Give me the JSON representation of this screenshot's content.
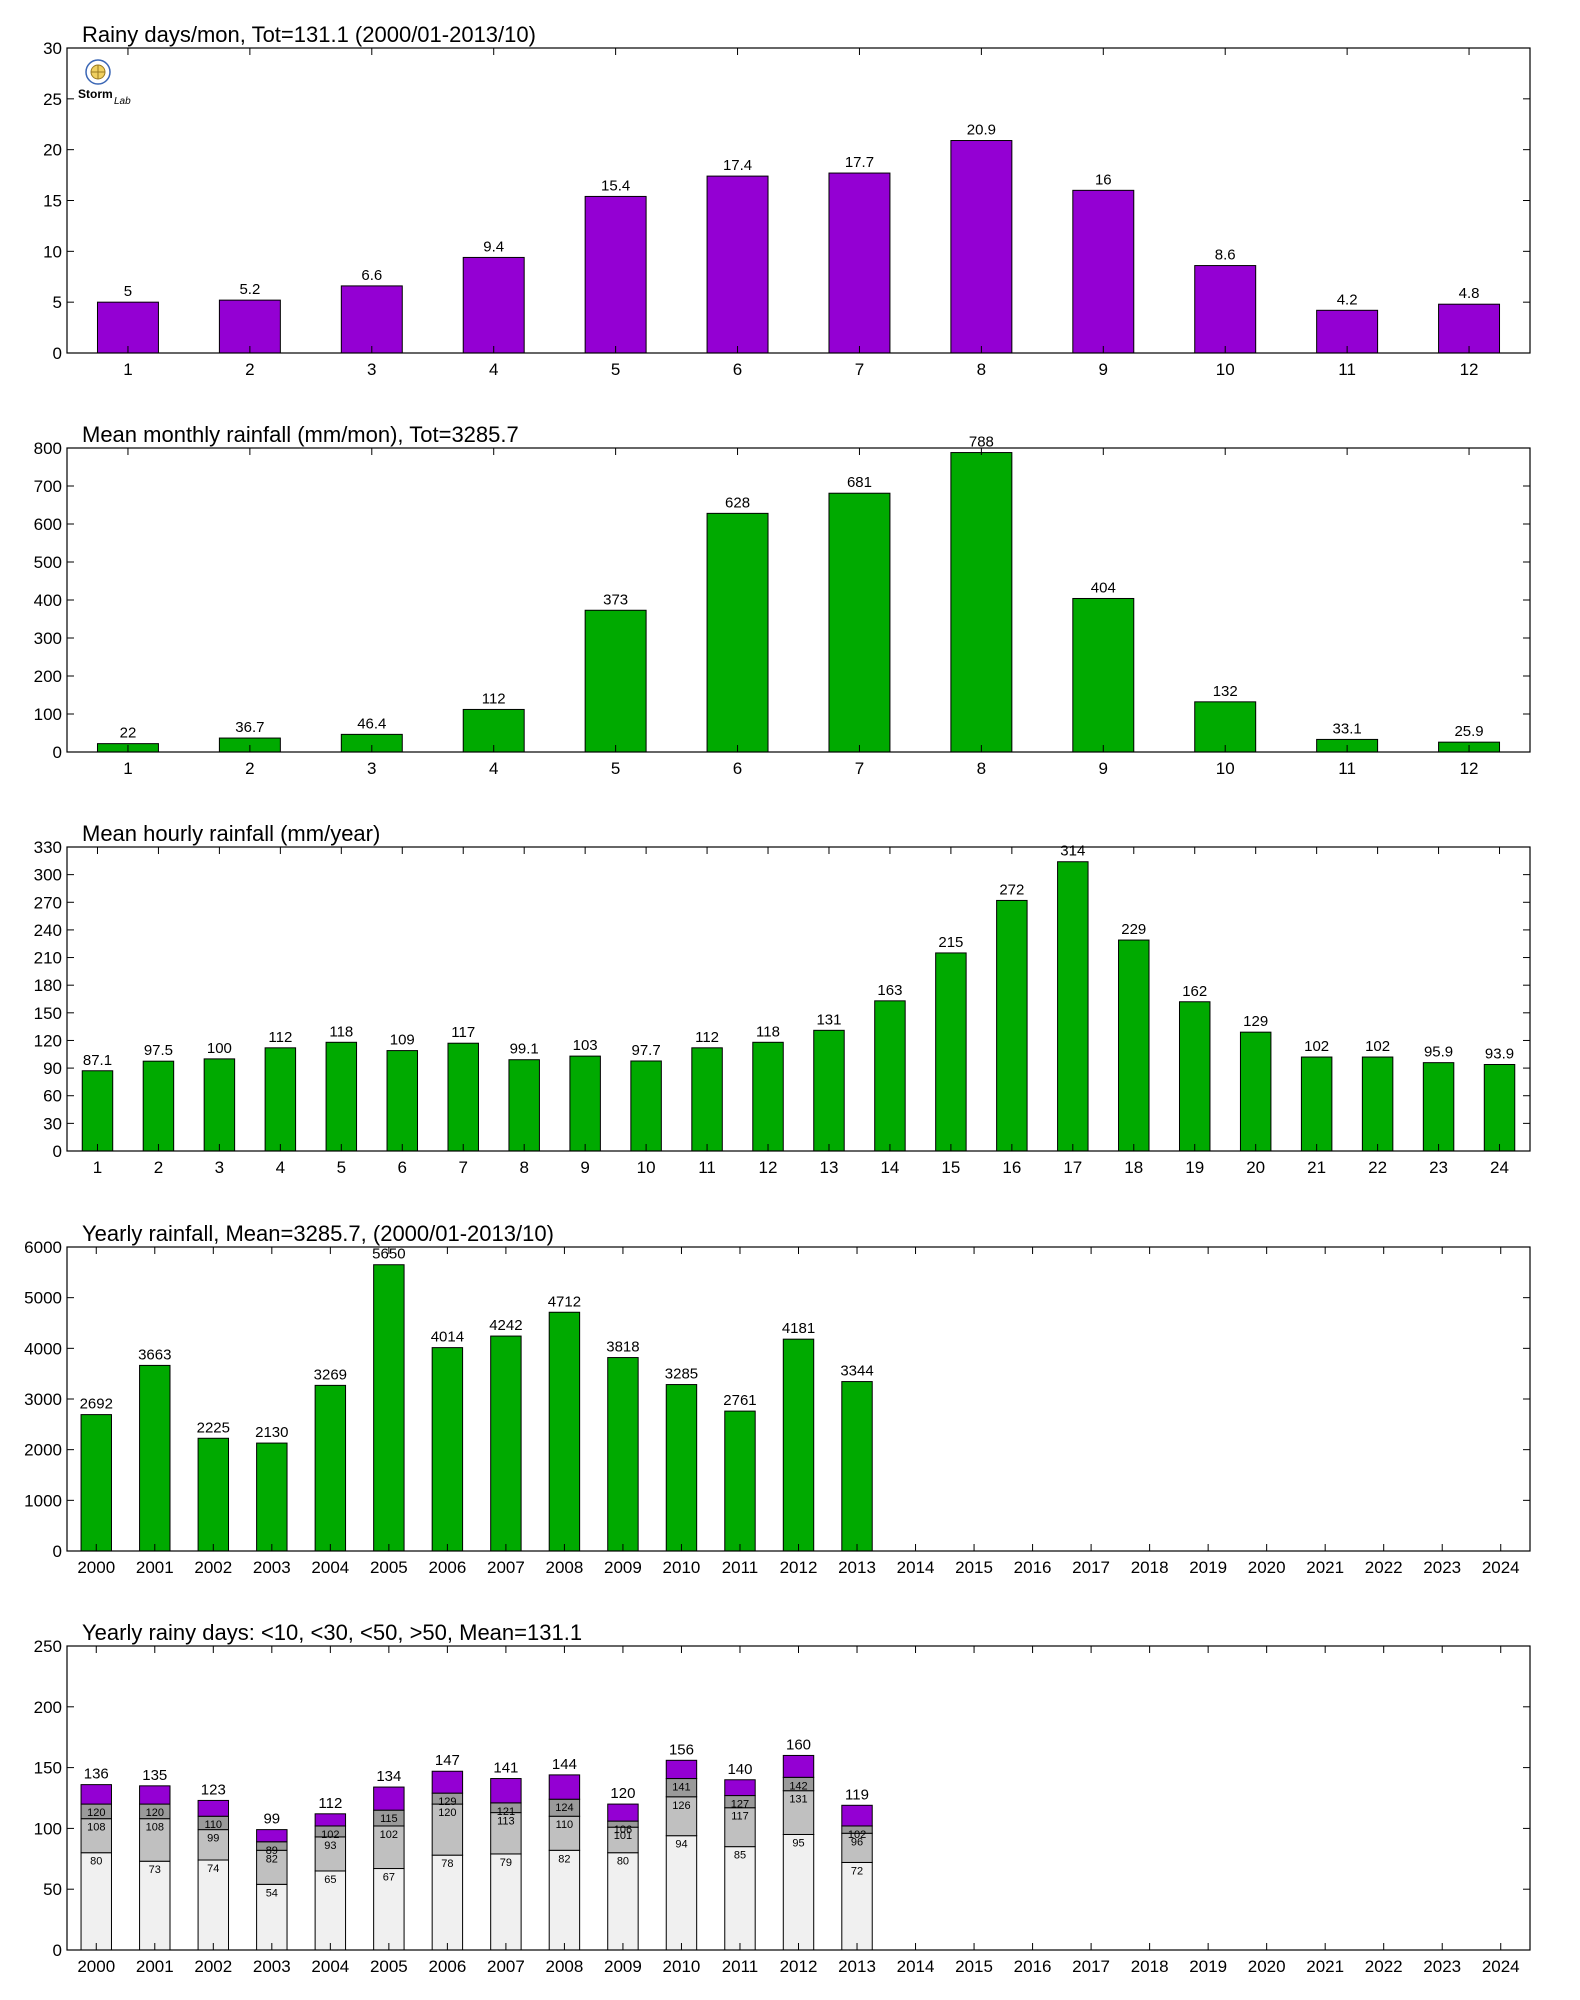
{
  "colors": {
    "purple": "#9400D3",
    "green": "#00AA00",
    "stack_light": "#F0F0F0",
    "stack_mid": "#C0C0C0",
    "stack_dark": "#9A9A9A",
    "frame": "#000000"
  },
  "logo": {
    "text_left": "Storm",
    "text_right": "Lab",
    "icon": "storm-lab-logo-icon"
  },
  "chart_data": [
    {
      "type": "bar",
      "title": "Rainy days/mon, Tot=131.1 (2000/01-2013/10)",
      "categories": [
        "1",
        "2",
        "3",
        "4",
        "5",
        "6",
        "7",
        "8",
        "9",
        "10",
        "11",
        "12"
      ],
      "values": [
        5,
        5.2,
        6.6,
        9.4,
        15.4,
        17.4,
        17.7,
        20.9,
        16,
        8.6,
        4.2,
        4.8
      ],
      "labels": [
        "5",
        "5.2",
        "6.6",
        "9.4",
        "15.4",
        "17.4",
        "17.7",
        "20.9",
        "16",
        "8.6",
        "4.2",
        "4.8"
      ],
      "ylim": [
        0,
        30
      ],
      "yticks": [
        0,
        5,
        10,
        15,
        20,
        25,
        30
      ],
      "color": "#9400D3",
      "grid": false
    },
    {
      "type": "bar",
      "title": "Mean monthly rainfall (mm/mon), Tot=3285.7",
      "categories": [
        "1",
        "2",
        "3",
        "4",
        "5",
        "6",
        "7",
        "8",
        "9",
        "10",
        "11",
        "12"
      ],
      "values": [
        22,
        36.7,
        46.4,
        112,
        373,
        628,
        681,
        788,
        404,
        132,
        33.1,
        25.9
      ],
      "labels": [
        "22",
        "36.7",
        "46.4",
        "112",
        "373",
        "628",
        "681",
        "788",
        "404",
        "132",
        "33.1",
        "25.9"
      ],
      "ylim": [
        0,
        800
      ],
      "yticks": [
        0,
        100,
        200,
        300,
        400,
        500,
        600,
        700,
        800
      ],
      "color": "#00AA00",
      "grid": false
    },
    {
      "type": "bar",
      "title": "Mean hourly rainfall (mm/year)",
      "categories": [
        "1",
        "2",
        "3",
        "4",
        "5",
        "6",
        "7",
        "8",
        "9",
        "10",
        "11",
        "12",
        "13",
        "14",
        "15",
        "16",
        "17",
        "18",
        "19",
        "20",
        "21",
        "22",
        "23",
        "24"
      ],
      "values": [
        87.1,
        97.5,
        100,
        112,
        118,
        109,
        117,
        99.1,
        103,
        97.7,
        112,
        118,
        131,
        163,
        215,
        272,
        314,
        229,
        162,
        129,
        102,
        102,
        95.9,
        93.9
      ],
      "labels": [
        "87.1",
        "97.5",
        "100",
        "112",
        "118",
        "109",
        "117",
        "99.1",
        "103",
        "97.7",
        "112",
        "118",
        "131",
        "163",
        "215",
        "272",
        "314",
        "229",
        "162",
        "129",
        "102",
        "102",
        "95.9",
        "93.9"
      ],
      "ylim": [
        0,
        330
      ],
      "yticks": [
        0,
        30,
        60,
        90,
        120,
        150,
        180,
        210,
        240,
        270,
        300,
        330
      ],
      "color": "#00AA00",
      "grid": false
    },
    {
      "type": "bar",
      "title": "Yearly rainfall, Mean=3285.7, (2000/01-2013/10)",
      "categories": [
        "2000",
        "2001",
        "2002",
        "2003",
        "2004",
        "2005",
        "2006",
        "2007",
        "2008",
        "2009",
        "2010",
        "2011",
        "2012",
        "2013",
        "2014",
        "2015",
        "2016",
        "2017",
        "2018",
        "2019",
        "2020",
        "2021",
        "2022",
        "2023",
        "2024"
      ],
      "values": [
        2692,
        3663,
        2225,
        2130,
        3269,
        5650,
        4014,
        4242,
        4712,
        3818,
        3285,
        2761,
        4181,
        3344,
        null,
        null,
        null,
        null,
        null,
        null,
        null,
        null,
        null,
        null,
        null
      ],
      "labels": [
        "2692",
        "3663",
        "2225",
        "2130",
        "3269",
        "5650",
        "4014",
        "4242",
        "4712",
        "3818",
        "3285",
        "2761",
        "4181",
        "3344",
        "",
        "",
        "",
        "",
        "",
        "",
        "",
        "",
        "",
        "",
        ""
      ],
      "ylim": [
        0,
        6000
      ],
      "yticks": [
        0,
        1000,
        2000,
        3000,
        4000,
        5000,
        6000
      ],
      "color": "#00AA00",
      "grid": false
    },
    {
      "type": "bar",
      "stacked": true,
      "title": "Yearly rainy days: <10, <30, <50, >50, Mean=131.1",
      "categories": [
        "2000",
        "2001",
        "2002",
        "2003",
        "2004",
        "2005",
        "2006",
        "2007",
        "2008",
        "2009",
        "2010",
        "2011",
        "2012",
        "2013",
        "2014",
        "2015",
        "2016",
        "2017",
        "2018",
        "2019",
        "2020",
        "2021",
        "2022",
        "2023",
        "2024"
      ],
      "cumulative": {
        "lt10": [
          80,
          73,
          74,
          54,
          65,
          67,
          78,
          79,
          82,
          80,
          94,
          85,
          95,
          72
        ],
        "lt30": [
          108,
          108,
          99,
          82,
          93,
          102,
          120,
          113,
          110,
          101,
          126,
          117,
          131,
          96
        ],
        "lt50": [
          120,
          120,
          110,
          89,
          102,
          115,
          129,
          121,
          124,
          106,
          141,
          127,
          142,
          102
        ],
        "total": [
          136,
          135,
          123,
          99,
          112,
          134,
          147,
          141,
          144,
          120,
          156,
          140,
          160,
          119
        ]
      },
      "labels": {
        "lt10": [
          "80",
          "73",
          "74",
          "54",
          "65",
          "67",
          "78",
          "79",
          "82",
          "80",
          "94",
          "85",
          "95",
          "72"
        ],
        "lt30": [
          "108",
          "108",
          "99",
          "82",
          "93",
          "102",
          "120",
          "113",
          "110",
          "101",
          "126",
          "117",
          "131",
          "96"
        ],
        "lt50": [
          "120",
          "120",
          "110",
          "89",
          "102",
          "115",
          "129",
          "121",
          "124",
          "106",
          "141",
          "127",
          "142",
          "102"
        ],
        "total": [
          "136",
          "135",
          "123",
          "99",
          "112",
          "134",
          "147",
          "141",
          "144",
          "120",
          "156",
          "140",
          "160",
          "119"
        ]
      },
      "ylim": [
        0,
        250
      ],
      "yticks": [
        0,
        50,
        100,
        150,
        200,
        250
      ],
      "segment_colors": [
        "#F0F0F0",
        "#C0C0C0",
        "#9A9A9A",
        "#9400D3"
      ],
      "grid": false
    }
  ]
}
